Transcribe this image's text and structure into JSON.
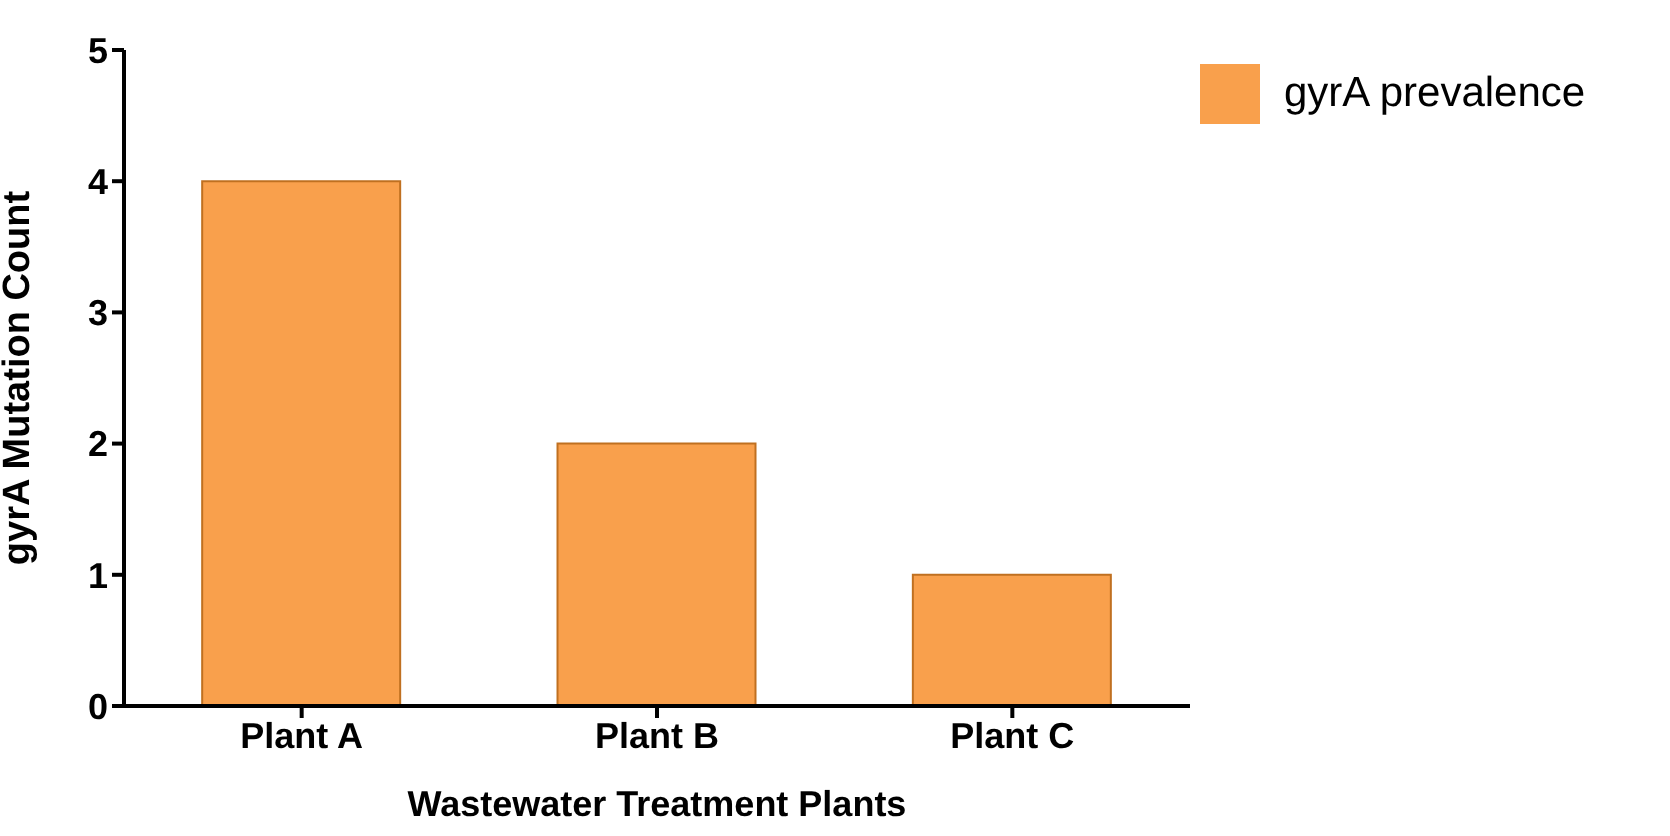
{
  "chart_data": {
    "type": "bar",
    "xlabel": "Wastewater Treatment Plants",
    "ylabel": "gyrA Mutation Count",
    "categories": [
      "Plant A",
      "Plant B",
      "Plant C"
    ],
    "series": [
      {
        "name": "gyrA prevalence",
        "color": "#f9a04c",
        "values": [
          4,
          2,
          1
        ]
      }
    ],
    "ylim": [
      0,
      5
    ],
    "yticks": [
      0,
      1,
      2,
      3,
      4,
      5
    ],
    "grid": false,
    "legend": "top right"
  }
}
